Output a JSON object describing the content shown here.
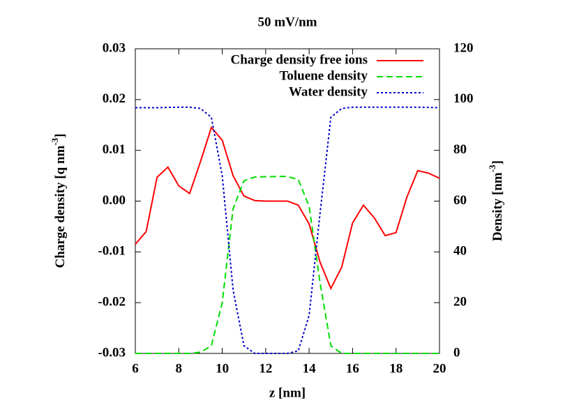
{
  "chart_data": {
    "type": "line",
    "title": "50 mV/nm",
    "xlabel": "z [nm]",
    "ylabel_parts": [
      "Charge density [q nm",
      "-3",
      "]"
    ],
    "y2label_parts": [
      "Density [nm",
      "-3",
      "]"
    ],
    "x": [
      6,
      6.2,
      6.5,
      7,
      7.5,
      8,
      8.5,
      9,
      9.5,
      10,
      10.5,
      11,
      11.5,
      12,
      12.5,
      13,
      13.5,
      14,
      14.5,
      15,
      15.5,
      16,
      16.5,
      17,
      17.5,
      18,
      18.5,
      19,
      19.5,
      20
    ],
    "series": [
      {
        "name": "Charge density free ions",
        "color": "#ff0000",
        "dash": "solid",
        "values": [
          -0.0085,
          -0.0075,
          -0.006,
          0.0047,
          0.0067,
          0.003,
          0.0015,
          0.0078,
          0.0145,
          0.012,
          0.005,
          0.001,
          0.0001,
          0,
          0,
          0,
          -0.0008,
          -0.0045,
          -0.012,
          -0.0172,
          -0.013,
          -0.0043,
          -0.0008,
          -0.0033,
          -0.0068,
          -0.0062,
          0.0008,
          0.006,
          0.0055,
          0.0045
        ]
      },
      {
        "name": "Toluene density",
        "color": "#00dd00",
        "dash": "dashed",
        "axis": "y2",
        "values": [
          0,
          0,
          0,
          0,
          0,
          0,
          0,
          0.5,
          3,
          20,
          57,
          68,
          69.5,
          69.6,
          69.7,
          69.7,
          68.5,
          58,
          28,
          3,
          0,
          0,
          0,
          0,
          0,
          0,
          0,
          0,
          0,
          0
        ]
      },
      {
        "name": "Water density",
        "color": "#0000cc",
        "dash": "dotted",
        "axis": "y2",
        "values": [
          96.8,
          96.8,
          96.8,
          96.8,
          96.9,
          97,
          97,
          96.5,
          93,
          70,
          25,
          3,
          0,
          0,
          0,
          0,
          1,
          15,
          55,
          93,
          96.5,
          97,
          97,
          97,
          97,
          97,
          97,
          97,
          96.9,
          96.8
        ]
      }
    ],
    "xlim": [
      6,
      20
    ],
    "xticks": [
      6,
      8,
      10,
      12,
      14,
      16,
      18,
      20
    ],
    "ylim": [
      -0.03,
      0.03
    ],
    "yticks": [
      -0.03,
      -0.02,
      -0.01,
      {
        "value": 0,
        "label": "0.00"
      },
      0.01,
      0.02,
      0.03
    ],
    "y2lim": [
      0,
      120
    ],
    "y2ticks": [
      0,
      20,
      40,
      60,
      80,
      100,
      120
    ],
    "legend": "top-right"
  }
}
